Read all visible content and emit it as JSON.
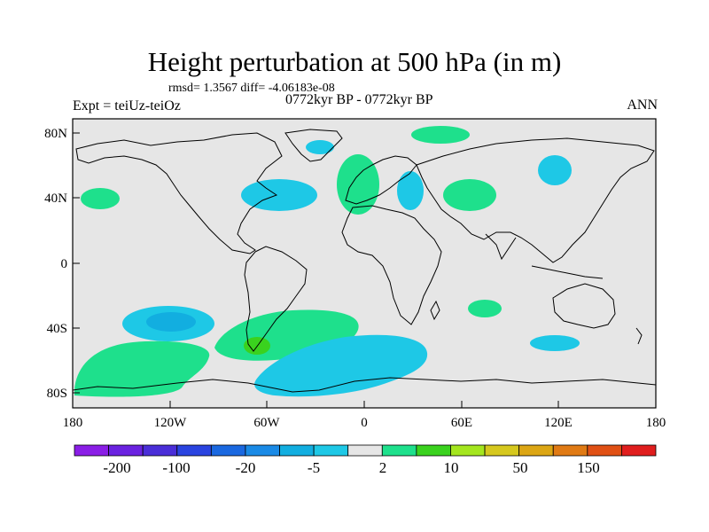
{
  "title": "Height perturbation at 500 hPa (in m)",
  "stats": "rmsd= 1.3567  diff= -4.06183e-08",
  "subtitle": "0772kyr BP - 0772kyr BP",
  "left_label": "Expt = teiUz-teiOz",
  "right_label": "ANN",
  "y_axis_labels": [
    "80N",
    "40N",
    "0",
    "40S",
    "80S"
  ],
  "x_axis_labels": [
    "180",
    "120W",
    "60W",
    "0",
    "60E",
    "120E",
    "180"
  ],
  "colorbar": {
    "colors": [
      "#8a1ee6",
      "#6a22e0",
      "#4a2ed8",
      "#2a44e0",
      "#1a68e0",
      "#1a8ae6",
      "#12aee0",
      "#1ec8e6",
      "#e6e6e6",
      "#1ee08c",
      "#3ad21e",
      "#a4e61e",
      "#d6c81e",
      "#dca614",
      "#e07a14",
      "#e05014",
      "#e01e1e"
    ],
    "labels": [
      "-200",
      "-100",
      "-20",
      "-5",
      "2",
      "10",
      "50",
      "150"
    ]
  },
  "anomaly_colors": {
    "neg_light": "#1ec8e6",
    "neg_mid": "#12aee0",
    "pos_light": "#1ee08c",
    "pos_mid": "#3ad21e",
    "background": "#e6e6e6"
  }
}
